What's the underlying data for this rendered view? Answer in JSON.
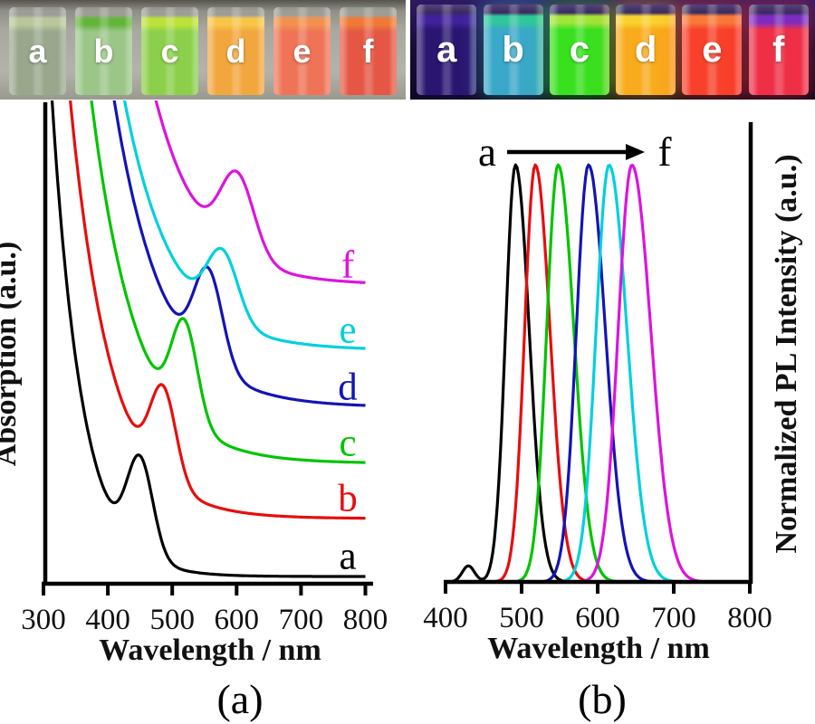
{
  "figure": {
    "panel_a_label": "(a)",
    "panel_b_label": "(b)"
  },
  "photos": {
    "ambient": {
      "description": "six colloidal quantum dot vials under ambient light",
      "vials": [
        {
          "label": "a",
          "liquid": "#9aa78c",
          "surface": "#b9c79b"
        },
        {
          "label": "b",
          "liquid": "#9cc688",
          "surface": "#63b53a"
        },
        {
          "label": "c",
          "liquid": "#8bcf4a",
          "surface": "#bce23a"
        },
        {
          "label": "d",
          "liquid": "#f2a63e",
          "surface": "#f7c646"
        },
        {
          "label": "e",
          "liquid": "#ef7356",
          "surface": "#f2914e"
        },
        {
          "label": "f",
          "liquid": "#e55744",
          "surface": "#ef7a35"
        }
      ]
    },
    "uv": {
      "description": "same six vials fluorescing under UV illumination",
      "vials": [
        {
          "label": "a",
          "liquid": "#2a1670",
          "surface": "#41219c"
        },
        {
          "label": "b",
          "liquid": "#3aa8c8",
          "surface": "#2fc79b"
        },
        {
          "label": "c",
          "liquid": "#38e01e",
          "surface": "#a2e43a"
        },
        {
          "label": "d",
          "liquid": "#f8ab1c",
          "surface": "#f9d22e"
        },
        {
          "label": "e",
          "liquid": "#f8402a",
          "surface": "#f97a38"
        },
        {
          "label": "f",
          "liquid": "#ee2f46",
          "surface": "#7e2cc0"
        }
      ]
    }
  },
  "chart_data": [
    {
      "id": "absorption",
      "type": "line",
      "xlabel": "Wavelength / nm",
      "ylabel": "Absorption (a.u.)",
      "xlim": [
        300,
        800
      ],
      "xticks": [
        300,
        400,
        500,
        600,
        700,
        800
      ],
      "grid": false,
      "note": "curves a-f vertically offset, excitonic peak red-shifts from a to f",
      "series": [
        {
          "name": "a",
          "color": "#000000",
          "peak_nm": 450,
          "sigma_nm": 20,
          "amp": 0.198,
          "baseline": 0.015,
          "edge_nm": 313,
          "tau_nm": 47
        },
        {
          "name": "b",
          "color": "#e60e0e",
          "peak_nm": 486,
          "sigma_nm": 20,
          "amp": 0.189,
          "baseline": 0.136,
          "edge_nm": 333,
          "tau_nm": 63
        },
        {
          "name": "c",
          "color": "#00c400",
          "peak_nm": 519,
          "sigma_nm": 20,
          "amp": 0.204,
          "baseline": 0.251,
          "edge_nm": 355,
          "tau_nm": 70
        },
        {
          "name": "d",
          "color": "#1414b4",
          "peak_nm": 556,
          "sigma_nm": 22,
          "amp": 0.197,
          "baseline": 0.368,
          "edge_nm": 376,
          "tau_nm": 76
        },
        {
          "name": "e",
          "color": "#00d0dc",
          "peak_nm": 578,
          "sigma_nm": 24,
          "amp": 0.142,
          "baseline": 0.487,
          "edge_nm": 377,
          "tau_nm": 75
        },
        {
          "name": "f",
          "color": "#dc14dc",
          "peak_nm": 601,
          "sigma_nm": 26,
          "amp": 0.166,
          "baseline": 0.623,
          "edge_nm": 404,
          "tau_nm": 74
        }
      ]
    },
    {
      "id": "pl",
      "type": "line",
      "xlabel": "Wavelength / nm",
      "ylabel": "Normalized PL Intensity (a.u.)",
      "xlim": [
        400,
        800
      ],
      "xticks": [
        400,
        500,
        600,
        700,
        800
      ],
      "grid": false,
      "annotation": {
        "from": "a",
        "to": "f"
      },
      "peak_height": 0.907,
      "series": [
        {
          "name": "a",
          "color": "#000000",
          "peak_nm": 492,
          "sigma_nm": 13,
          "shoulder": {
            "center_nm": 430,
            "amp": 0.035,
            "sigma_nm": 8
          }
        },
        {
          "name": "b",
          "color": "#e60e0e",
          "peak_nm": 518,
          "sigma_nm": 14
        },
        {
          "name": "c",
          "color": "#00c400",
          "peak_nm": 548,
          "sigma_nm": 15
        },
        {
          "name": "d",
          "color": "#1414b4",
          "peak_nm": 588,
          "sigma_nm": 16
        },
        {
          "name": "e",
          "color": "#00d0dc",
          "peak_nm": 615,
          "sigma_nm": 17
        },
        {
          "name": "f",
          "color": "#dc14dc",
          "peak_nm": 645,
          "sigma_nm": 18
        }
      ]
    }
  ]
}
